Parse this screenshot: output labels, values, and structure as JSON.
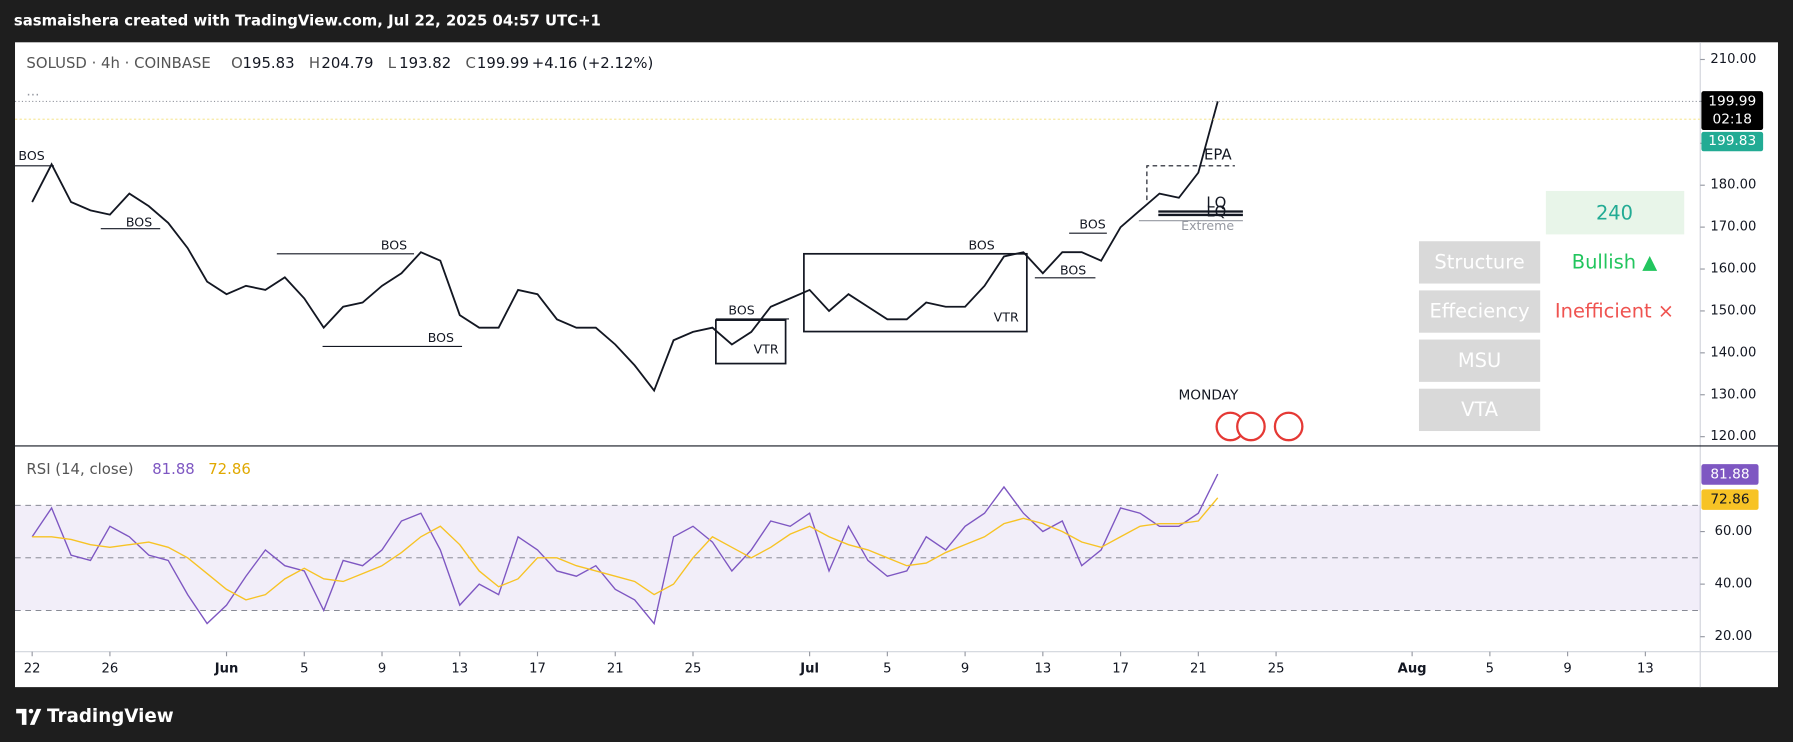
{
  "header": "sasmaishera created with TradingView.com, Jul 22, 2025 04:57 UTC+1",
  "footer": "TradingView",
  "chart_data": [
    {
      "type": "line",
      "symbol": "SOLUSD · 4h · COINBASE",
      "ohlc": [
        {
          "label": "O",
          "value": 195.83
        },
        {
          "label": "H",
          "value": 204.79
        },
        {
          "label": "L",
          "value": 193.82
        }
      ],
      "close_label": "C",
      "change": "+4.16 (+2.12%)",
      "countdown": "02:18",
      "price_line": 199.83,
      "x": [
        "2025-05-22",
        "2025-05-23",
        "2025-05-24",
        "2025-05-25",
        "2025-05-26",
        "2025-05-27",
        "2025-05-28",
        "2025-05-29",
        "2025-05-30",
        "2025-05-31",
        "2025-06-01",
        "2025-06-02",
        "2025-06-03",
        "2025-06-04",
        "2025-06-05",
        "2025-06-06",
        "2025-06-07",
        "2025-06-08",
        "2025-06-09",
        "2025-06-10",
        "2025-06-11",
        "2025-06-12",
        "2025-06-13",
        "2025-06-14",
        "2025-06-15",
        "2025-06-16",
        "2025-06-17",
        "2025-06-18",
        "2025-06-19",
        "2025-06-20",
        "2025-06-21",
        "2025-06-22",
        "2025-06-23",
        "2025-06-24",
        "2025-06-25",
        "2025-06-26",
        "2025-06-27",
        "2025-06-28",
        "2025-06-29",
        "2025-06-30",
        "2025-07-01",
        "2025-07-02",
        "2025-07-03",
        "2025-07-04",
        "2025-07-05",
        "2025-07-06",
        "2025-07-07",
        "2025-07-08",
        "2025-07-09",
        "2025-07-10",
        "2025-07-11",
        "2025-07-12",
        "2025-07-13",
        "2025-07-14",
        "2025-07-15",
        "2025-07-16",
        "2025-07-17",
        "2025-07-18",
        "2025-07-19",
        "2025-07-20",
        "2025-07-21",
        "2025-07-22"
      ],
      "series": [
        {
          "color": "#131722",
          "values": [
            176,
            185,
            176,
            174,
            173,
            178,
            175,
            171,
            165,
            157,
            154,
            156,
            155,
            158,
            153,
            146,
            151,
            152,
            156,
            159,
            164,
            162,
            149,
            146,
            146,
            155,
            154,
            148,
            146,
            146,
            142,
            137,
            131,
            143,
            145,
            146,
            142,
            145,
            151,
            153,
            155,
            150,
            154,
            151,
            148,
            148,
            152,
            151,
            151,
            156,
            163,
            164,
            159,
            164,
            164,
            162,
            170,
            174,
            178,
            177,
            183,
            199.99
          ]
        }
      ],
      "xlim": [
        "2025-05-21",
        "2025-08-16"
      ],
      "xticks": [
        {
          "value": "2025-05-22",
          "label": "22"
        },
        {
          "value": "2025-05-26",
          "label": "26"
        },
        {
          "value": "2025-06-01",
          "label": "Jun"
        },
        {
          "value": "2025-06-05",
          "label": "5"
        },
        {
          "value": "2025-06-09",
          "label": "9"
        },
        {
          "value": "2025-06-13",
          "label": "13"
        },
        {
          "value": "2025-06-17",
          "label": "17"
        },
        {
          "value": "2025-06-21",
          "label": "21"
        },
        {
          "value": "2025-06-25",
          "label": "25"
        },
        {
          "value": "2025-07-01",
          "label": "Jul"
        },
        {
          "value": "2025-07-05",
          "label": "5"
        },
        {
          "value": "2025-07-09",
          "label": "9"
        },
        {
          "value": "2025-07-13",
          "label": "13"
        },
        {
          "value": "2025-07-17",
          "label": "17"
        },
        {
          "value": "2025-07-21",
          "label": "21"
        },
        {
          "value": "2025-07-25",
          "label": "25"
        },
        {
          "value": "2025-08-01",
          "label": "Aug"
        },
        {
          "value": "2025-08-05",
          "label": "5"
        },
        {
          "value": "2025-08-09",
          "label": "9"
        },
        {
          "value": "2025-08-13",
          "label": "13"
        }
      ],
      "ylim": [
        117.8,
        214.1
      ],
      "yticks": [
        {
          "value": 210,
          "label": "210.00"
        },
        {
          "value": 200,
          "label": "200.00"
        },
        {
          "value": 190,
          "label": "190.00"
        },
        {
          "value": 180,
          "label": "180.00"
        },
        {
          "value": 170,
          "label": "170.00"
        },
        {
          "value": 160,
          "label": "160.00"
        },
        {
          "value": 150,
          "label": "150.00"
        },
        {
          "value": 140,
          "label": "140.00"
        },
        {
          "value": 130,
          "label": "130.00"
        },
        {
          "value": 120,
          "label": "120.00"
        }
      ],
      "grid": false
    },
    {
      "type": "line",
      "title": "RSI (14, close)",
      "series": [
        {
          "color": "#7e57c2",
          "values": [
            58,
            69,
            51,
            49,
            62,
            58,
            51,
            49,
            36,
            25,
            32,
            43,
            53,
            47,
            45,
            30,
            49,
            47,
            53,
            64,
            67,
            53,
            32,
            40,
            36,
            58,
            53,
            45,
            43,
            47,
            38,
            34,
            25,
            58,
            62,
            56,
            45,
            53,
            64,
            62,
            67,
            45,
            62,
            49,
            43,
            45,
            58,
            53,
            62,
            67,
            77,
            67,
            60,
            64,
            47,
            53,
            69,
            67,
            62,
            62,
            67,
            81.88
          ]
        },
        {
          "color": "#f7c325",
          "values": [
            58,
            58,
            57,
            55,
            54,
            55,
            56,
            54,
            50,
            44,
            38,
            34,
            36,
            42,
            46,
            42,
            41,
            44,
            47,
            52,
            58,
            62,
            55,
            45,
            39,
            42,
            50,
            50,
            47,
            45,
            43,
            41,
            36,
            40,
            50,
            58,
            54,
            50,
            54,
            59,
            62,
            58,
            55,
            53,
            50,
            47,
            48,
            52,
            55,
            58,
            63,
            65,
            63,
            60,
            56,
            54,
            58,
            62,
            63,
            63,
            64,
            72.86
          ]
        }
      ],
      "ylim": [
        14.3,
        92.6
      ],
      "yticks": [
        {
          "value": 60,
          "label": "60.00"
        },
        {
          "value": 40,
          "label": "40.00"
        },
        {
          "value": 20,
          "label": "20.00"
        }
      ],
      "levels": [
        70,
        50,
        30
      ]
    }
  ],
  "annotations": [
    "BOS",
    "BOS",
    "BOS",
    "BOS",
    "BOS",
    "BOS",
    "BOS",
    "BOS",
    "VTR",
    "VTR",
    "EPA",
    "LQ",
    "LQ",
    "Extreme"
  ],
  "session_label": "MONDAY",
  "panel": {
    "timeframe": "240",
    "rows": [
      {
        "label": "Structure",
        "status": "Bullish ▲"
      },
      {
        "label": "Effeciency",
        "status": "Inefficient ×"
      },
      {
        "label": "MSU"
      },
      {
        "label": "VTA"
      }
    ]
  }
}
